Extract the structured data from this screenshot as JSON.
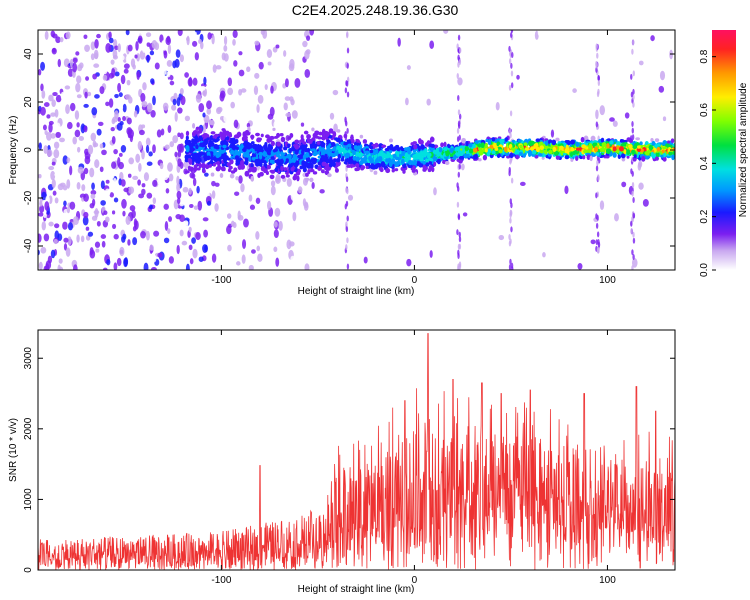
{
  "title": "C2E4.2025.248.19.36.G30",
  "chart_data": [
    {
      "type": "heatmap",
      "xlabel": "Height of straight line (km)",
      "ylabel": "Frequency (Hz)",
      "xlim": [
        -195,
        135
      ],
      "ylim": [
        -50,
        50
      ],
      "xticks": [
        -100,
        0,
        100
      ],
      "yticks": [
        -40,
        -20,
        0,
        20,
        40
      ],
      "ridge": {
        "description_points_x": [
          -120,
          -100,
          -80,
          -60,
          -40,
          -20,
          0,
          20,
          40,
          60,
          80,
          100,
          120,
          132
        ],
        "frequency_hz": [
          0,
          0,
          -2,
          -3,
          0,
          -3,
          -3,
          -1,
          1,
          1,
          0,
          1,
          0,
          0
        ]
      },
      "colorbar": {
        "label": "Normalized spectral amplitude",
        "range": [
          0.0,
          0.9
        ],
        "ticks": [
          "0.0",
          "0.2",
          "0.4",
          "0.6",
          "0.8"
        ]
      }
    },
    {
      "type": "line",
      "xlabel": "Height of straight line (km)",
      "ylabel": "SNR (10 * v/v)",
      "xlim": [
        -195,
        135
      ],
      "ylim": [
        0,
        3400
      ],
      "xticks": [
        -100,
        0,
        100
      ],
      "yticks": [
        0,
        1000,
        2000,
        3000
      ],
      "series": [
        {
          "name": "SNR",
          "color": "#ee3333",
          "envelope_x": [
            -195,
            -150,
            -100,
            -80,
            -60,
            -45,
            -40,
            -20,
            0,
            20,
            40,
            60,
            80,
            100,
            120,
            135
          ],
          "typical_low": [
            100,
            100,
            120,
            150,
            180,
            200,
            400,
            450,
            550,
            600,
            700,
            650,
            600,
            550,
            550,
            500
          ],
          "typical_high": [
            450,
            480,
            550,
            650,
            800,
            900,
            1400,
            1700,
            2100,
            2200,
            2000,
            1900,
            1800,
            1700,
            1600,
            1500
          ],
          "peaks": [
            [
              -80,
              1480
            ],
            [
              -5,
              2400
            ],
            [
              7,
              3350
            ],
            [
              20,
              2700
            ],
            [
              35,
              2650
            ],
            [
              45,
              2500
            ],
            [
              60,
              2550
            ],
            [
              88,
              2500
            ],
            [
              115,
              2600
            ],
            [
              125,
              2250
            ]
          ]
        }
      ]
    }
  ]
}
